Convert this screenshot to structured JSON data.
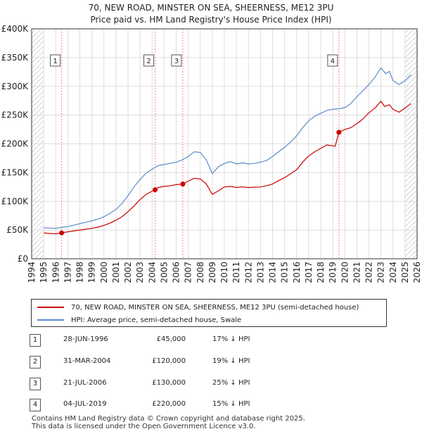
{
  "title_line1": "70, NEW ROAD, MINSTER ON SEA, SHEERNESS, ME12 3PU",
  "title_line2": "Price paid vs. HM Land Registry's House Price Index (HPI)",
  "colors": {
    "red": "#cc0000",
    "blue": "#5b8ccc",
    "grid": "#dddddd",
    "hatch": "#aaaaaa",
    "marker_line": "#ee8888"
  },
  "chart_data": {
    "type": "line",
    "title": "Price paid vs. HM Land Registry's House Price Index (HPI)",
    "xlabel": "",
    "ylabel": "",
    "xlim": [
      1994,
      2026
    ],
    "ylim": [
      0,
      400000
    ],
    "x_ticks": [
      1994,
      1995,
      1996,
      1997,
      1998,
      1999,
      2000,
      2001,
      2002,
      2003,
      2004,
      2005,
      2006,
      2007,
      2008,
      2009,
      2010,
      2011,
      2012,
      2013,
      2014,
      2015,
      2016,
      2017,
      2018,
      2019,
      2020,
      2021,
      2022,
      2023,
      2024,
      2025,
      2026
    ],
    "y_ticks": [
      {
        "value": 0,
        "label": "£0"
      },
      {
        "value": 50000,
        "label": "£50K"
      },
      {
        "value": 100000,
        "label": "£100K"
      },
      {
        "value": 150000,
        "label": "£150K"
      },
      {
        "value": 200000,
        "label": "£200K"
      },
      {
        "value": 250000,
        "label": "£250K"
      },
      {
        "value": 300000,
        "label": "£300K"
      },
      {
        "value": 350000,
        "label": "£350K"
      },
      {
        "value": 400000,
        "label": "£400K"
      }
    ],
    "hatched_ranges": [
      [
        1994,
        1995
      ],
      [
        2025,
        2026
      ]
    ],
    "series": [
      {
        "name": "70, NEW ROAD, MINSTER ON SEA, SHEERNESS, ME12 3PU (semi-detached house)",
        "color": "#cc0000",
        "points": [
          [
            1995,
            45000
          ],
          [
            1995.5,
            44000
          ],
          [
            1996,
            43500
          ],
          [
            1996.49,
            45000
          ],
          [
            1997,
            47000
          ],
          [
            1997.5,
            48500
          ],
          [
            1998,
            50000
          ],
          [
            1998.5,
            51500
          ],
          [
            1999,
            53000
          ],
          [
            1999.5,
            55000
          ],
          [
            2000,
            58000
          ],
          [
            2000.5,
            62000
          ],
          [
            2001,
            67000
          ],
          [
            2001.5,
            73000
          ],
          [
            2002,
            82000
          ],
          [
            2002.5,
            92000
          ],
          [
            2003,
            103000
          ],
          [
            2003.5,
            112000
          ],
          [
            2004.25,
            120000
          ],
          [
            2004.5,
            124000
          ],
          [
            2005,
            126000
          ],
          [
            2005.5,
            127000
          ],
          [
            2006,
            129000
          ],
          [
            2006.55,
            130000
          ],
          [
            2007,
            135000
          ],
          [
            2007.5,
            140000
          ],
          [
            2008,
            139000
          ],
          [
            2008.5,
            130000
          ],
          [
            2009,
            112000
          ],
          [
            2009.5,
            118000
          ],
          [
            2010,
            125000
          ],
          [
            2010.5,
            126000
          ],
          [
            2011,
            124000
          ],
          [
            2011.5,
            125000
          ],
          [
            2012,
            124000
          ],
          [
            2012.5,
            124500
          ],
          [
            2013,
            125000
          ],
          [
            2013.5,
            127000
          ],
          [
            2014,
            130000
          ],
          [
            2014.5,
            136000
          ],
          [
            2015,
            141000
          ],
          [
            2015.5,
            148000
          ],
          [
            2016,
            155000
          ],
          [
            2016.5,
            168000
          ],
          [
            2017,
            179000
          ],
          [
            2017.5,
            186000
          ],
          [
            2018,
            192000
          ],
          [
            2018.5,
            198000
          ],
          [
            2019.2,
            196000
          ],
          [
            2019.51,
            220000
          ],
          [
            2020,
            225000
          ],
          [
            2020.5,
            228000
          ],
          [
            2021,
            235000
          ],
          [
            2021.5,
            243000
          ],
          [
            2022,
            254000
          ],
          [
            2022.5,
            262000
          ],
          [
            2023,
            274000
          ],
          [
            2023.3,
            265000
          ],
          [
            2023.7,
            268000
          ],
          [
            2024,
            260000
          ],
          [
            2024.5,
            255000
          ],
          [
            2025,
            262000
          ],
          [
            2025.5,
            270000
          ]
        ]
      },
      {
        "name": "HPI: Average price, semi-detached house, Swale",
        "color": "#5b8ccc",
        "points": [
          [
            1995,
            54000
          ],
          [
            1995.5,
            53500
          ],
          [
            1996,
            53000
          ],
          [
            1996.5,
            54500
          ],
          [
            1997,
            56000
          ],
          [
            1997.5,
            58500
          ],
          [
            1998,
            61000
          ],
          [
            1998.5,
            63500
          ],
          [
            1999,
            66000
          ],
          [
            1999.5,
            69000
          ],
          [
            2000,
            73000
          ],
          [
            2000.5,
            79000
          ],
          [
            2001,
            86000
          ],
          [
            2001.5,
            96000
          ],
          [
            2002,
            110000
          ],
          [
            2002.5,
            125000
          ],
          [
            2003,
            138000
          ],
          [
            2003.5,
            149000
          ],
          [
            2004,
            156000
          ],
          [
            2004.5,
            162000
          ],
          [
            2005,
            164000
          ],
          [
            2005.5,
            166000
          ],
          [
            2006,
            168000
          ],
          [
            2006.5,
            172000
          ],
          [
            2007,
            178000
          ],
          [
            2007.5,
            186000
          ],
          [
            2008,
            185000
          ],
          [
            2008.5,
            172000
          ],
          [
            2009,
            148000
          ],
          [
            2009.5,
            160000
          ],
          [
            2010,
            166000
          ],
          [
            2010.5,
            169000
          ],
          [
            2011,
            165000
          ],
          [
            2011.5,
            167000
          ],
          [
            2012,
            165000
          ],
          [
            2012.5,
            166000
          ],
          [
            2013,
            168000
          ],
          [
            2013.5,
            171000
          ],
          [
            2014,
            178000
          ],
          [
            2014.5,
            186000
          ],
          [
            2015,
            194000
          ],
          [
            2015.5,
            203000
          ],
          [
            2016,
            214000
          ],
          [
            2016.5,
            228000
          ],
          [
            2017,
            240000
          ],
          [
            2017.5,
            248000
          ],
          [
            2018,
            253000
          ],
          [
            2018.5,
            258000
          ],
          [
            2019,
            260000
          ],
          [
            2019.5,
            261000
          ],
          [
            2020,
            263000
          ],
          [
            2020.5,
            270000
          ],
          [
            2021,
            282000
          ],
          [
            2021.5,
            292000
          ],
          [
            2022,
            303000
          ],
          [
            2022.5,
            316000
          ],
          [
            2023,
            332000
          ],
          [
            2023.4,
            322000
          ],
          [
            2023.7,
            326000
          ],
          [
            2024,
            310000
          ],
          [
            2024.5,
            303000
          ],
          [
            2025,
            310000
          ],
          [
            2025.5,
            320000
          ]
        ]
      }
    ],
    "sales": [
      {
        "num": "1",
        "x": 1996.49,
        "value": 45000
      },
      {
        "num": "2",
        "x": 2004.25,
        "value": 120000
      },
      {
        "num": "3",
        "x": 2006.55,
        "value": 130000
      },
      {
        "num": "4",
        "x": 2019.51,
        "value": 220000
      }
    ]
  },
  "legend": {
    "property_label": "70, NEW ROAD, MINSTER ON SEA, SHEERNESS, ME12 3PU (semi-detached house)",
    "hpi_label": "HPI: Average price, semi-detached house, Swale"
  },
  "sales_table": [
    {
      "num": "1",
      "date": "28-JUN-1996",
      "price": "£45,000",
      "hpi": "17% ↓ HPI"
    },
    {
      "num": "2",
      "date": "31-MAR-2004",
      "price": "£120,000",
      "hpi": "19% ↓ HPI"
    },
    {
      "num": "3",
      "date": "21-JUL-2006",
      "price": "£130,000",
      "hpi": "25% ↓ HPI"
    },
    {
      "num": "4",
      "date": "04-JUL-2019",
      "price": "£220,000",
      "hpi": "15% ↓ HPI"
    }
  ],
  "footer": {
    "line1": "Contains HM Land Registry data © Crown copyright and database right 2025.",
    "line2": "This data is licensed under the Open Government Licence v3.0."
  }
}
